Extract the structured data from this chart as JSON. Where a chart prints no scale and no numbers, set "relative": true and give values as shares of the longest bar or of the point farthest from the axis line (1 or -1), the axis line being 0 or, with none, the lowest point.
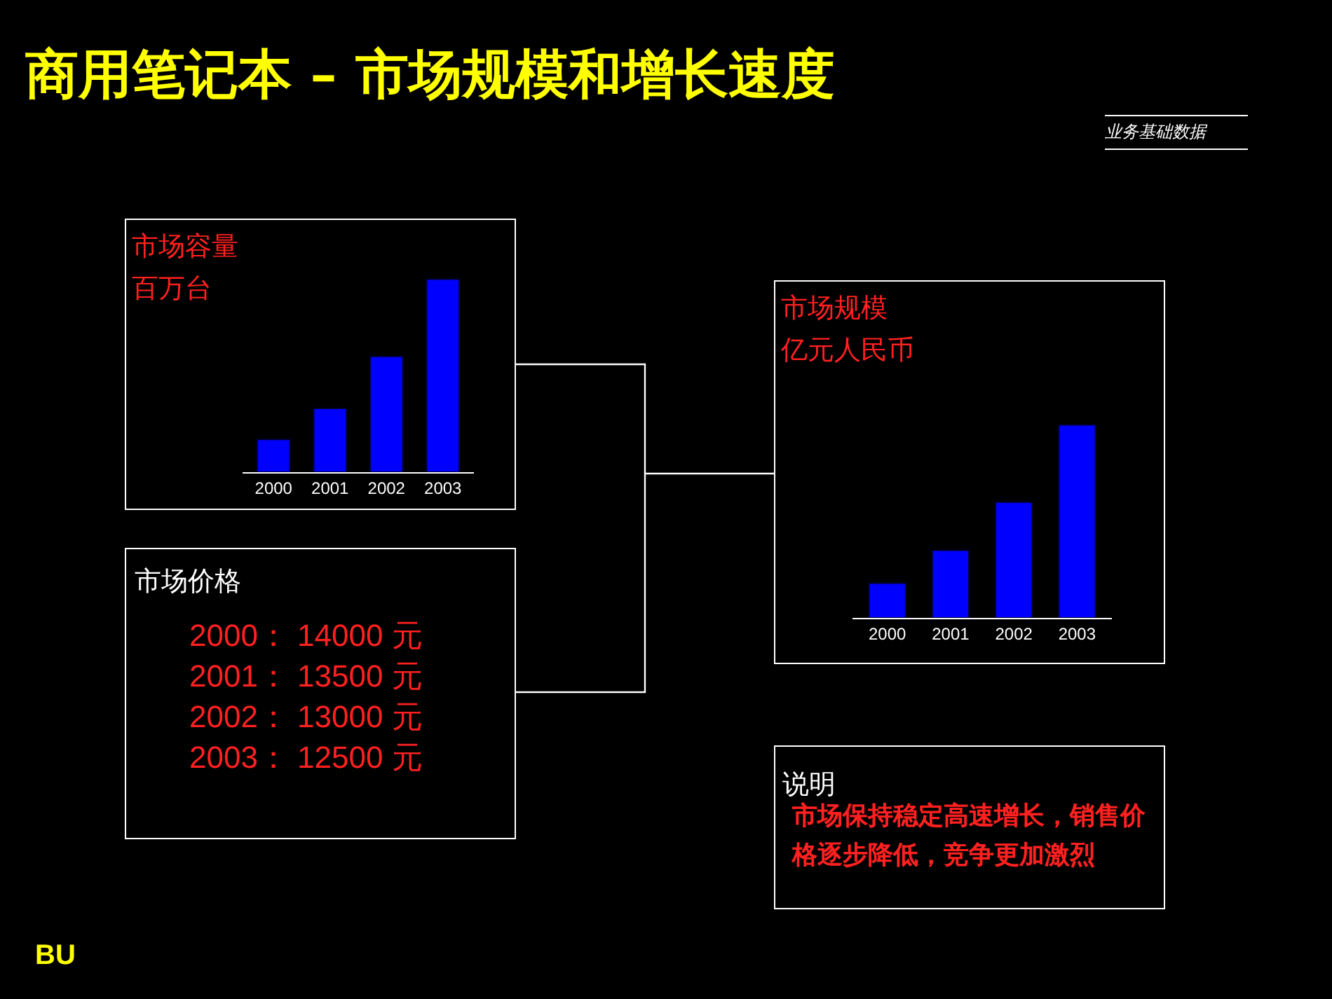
{
  "chart_data": [
    {
      "type": "other",
      "title": "商用笔记本 – 市场规模和增长速度",
      "subtitle": "业务基础数据",
      "annotations": [
        "BU"
      ]
    },
    {
      "type": "bar",
      "title": "市场容量",
      "subtitle": "百万台",
      "categories": [
        "2000",
        "2001",
        "2002",
        "2003"
      ],
      "values": [
        0.17,
        0.33,
        0.6,
        1
      ],
      "color": "#0000ff",
      "relative": true
    },
    {
      "type": "other",
      "title": "市场价格",
      "annotations": [
        "2000：  14000 元",
        "2001：  13500 元",
        "2002：  13000 元",
        "2003：  12500 元"
      ]
    },
    {
      "type": "bar",
      "title": "市场规模",
      "subtitle": "亿元人民币",
      "categories": [
        "2000",
        "2001",
        "2002",
        "2003"
      ],
      "values": [
        0.18,
        0.35,
        0.6,
        1
      ],
      "color": "#0000ff",
      "relative": true
    },
    {
      "type": "other",
      "title": "说明",
      "annotations": [
        "市场保持稳定高速增长，销售价格逐步降低，竞争更加激烈"
      ]
    }
  ]
}
